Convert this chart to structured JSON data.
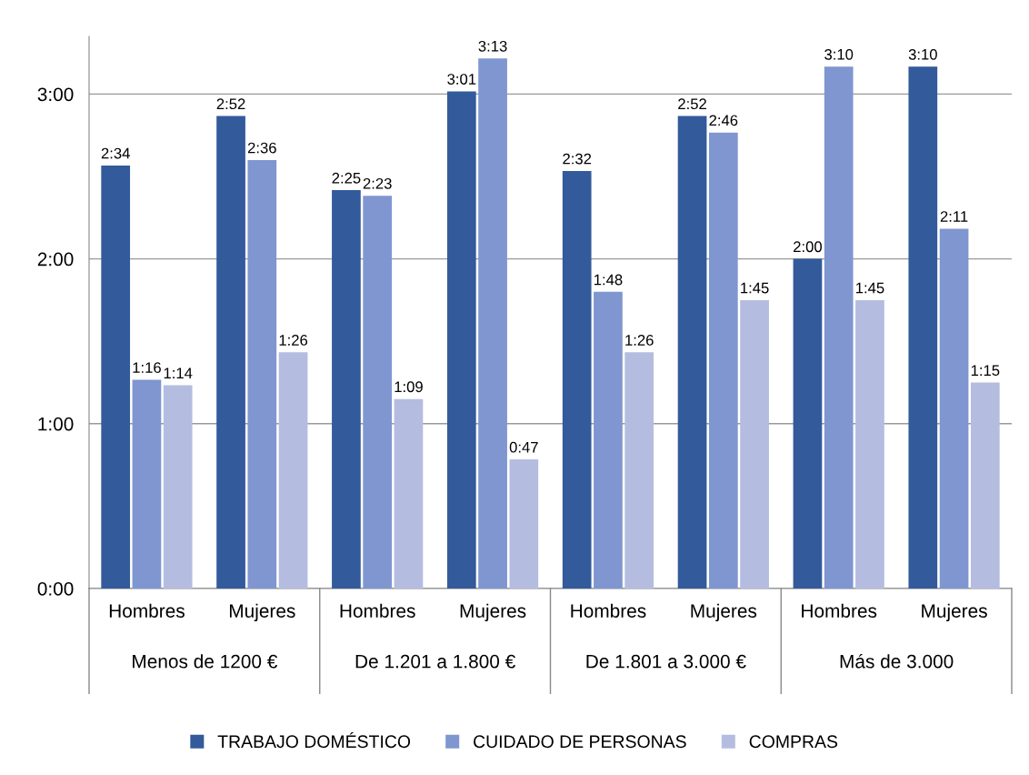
{
  "chart_data": {
    "type": "bar",
    "categories": [
      "Hombres",
      "Mujeres",
      "Hombres",
      "Mujeres",
      "Hombres",
      "Mujeres",
      "Hombres",
      "Mujeres"
    ],
    "annotations": [
      "Menos de 1200 €",
      "De 1.201 a 1.800 €",
      "De 1.801 a 3.000 €",
      "Más de 3.000"
    ],
    "series": [
      {
        "name": "TRABAJO DOMÉSTICO",
        "color": "#335a9b",
        "values": [
          2.5667,
          2.8667,
          2.4167,
          3.0167,
          2.5333,
          2.8667,
          2.0,
          3.1667
        ],
        "value_labels": [
          "2:34",
          "2:52",
          "2:25",
          "3:01",
          "2:32",
          "2:52",
          "2:00",
          "3:10"
        ]
      },
      {
        "name": "CUIDADO DE PERSONAS",
        "color": "#7f96d0",
        "values": [
          1.2667,
          2.6,
          2.3833,
          3.2167,
          1.8,
          2.7667,
          3.1667,
          2.1833
        ],
        "value_labels": [
          "1:16",
          "2:36",
          "2:23",
          "3:13",
          "1:48",
          "2:46",
          "3:10",
          "2:11"
        ]
      },
      {
        "name": "COMPRAS",
        "color": "#b4bde0",
        "values": [
          1.2333,
          1.4333,
          1.15,
          0.7833,
          1.4333,
          1.75,
          1.75,
          1.25
        ],
        "value_labels": [
          "1:14",
          "1:26",
          "1:09",
          "0:47",
          "1:26",
          "1:45",
          "1:45",
          "1:15"
        ]
      }
    ],
    "ylim": [
      0,
      3.35
    ],
    "yticks": [
      {
        "value": 0,
        "label": "0:00"
      },
      {
        "value": 1,
        "label": "1:00"
      },
      {
        "value": 2,
        "label": "2:00"
      },
      {
        "value": 3,
        "label": "3:00"
      }
    ],
    "grid": "y",
    "legend": "bottom"
  }
}
